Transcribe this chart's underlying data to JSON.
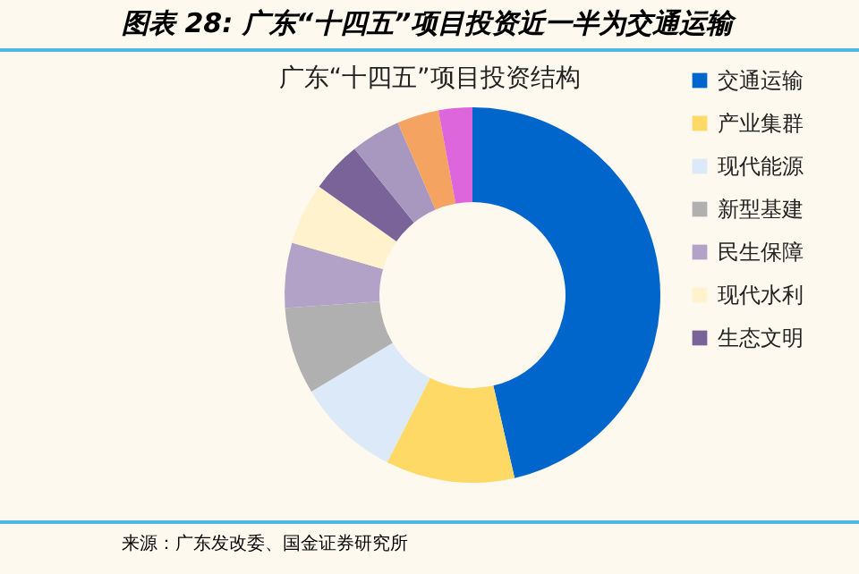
{
  "chart_data": {
    "type": "donut",
    "title": "图表 28: 广东“十四五”项目投资近一半为交通运输",
    "subtitle": "广东“十四五”项目投资结构",
    "categories": [
      "交通运输",
      "产业集群",
      "现代能源",
      "新型基建",
      "民生保障",
      "现代水利",
      "生态文明",
      null,
      null,
      null
    ],
    "values": [
      46.4,
      11.1,
      8.9,
      7.5,
      5.6,
      5.3,
      4.4,
      4.3,
      3.6,
      2.9
    ],
    "colors": [
      "#0066cc",
      "#ffd966",
      "#dce9f8",
      "#b0b0b0",
      "#b3a2c7",
      "#fff2cc",
      "#7a6399",
      "#a898c0",
      "#f4a460",
      "#dd66dd"
    ],
    "legend": "right",
    "annotations": [
      "来源：广东发改委、国金证券研究所"
    ]
  }
}
